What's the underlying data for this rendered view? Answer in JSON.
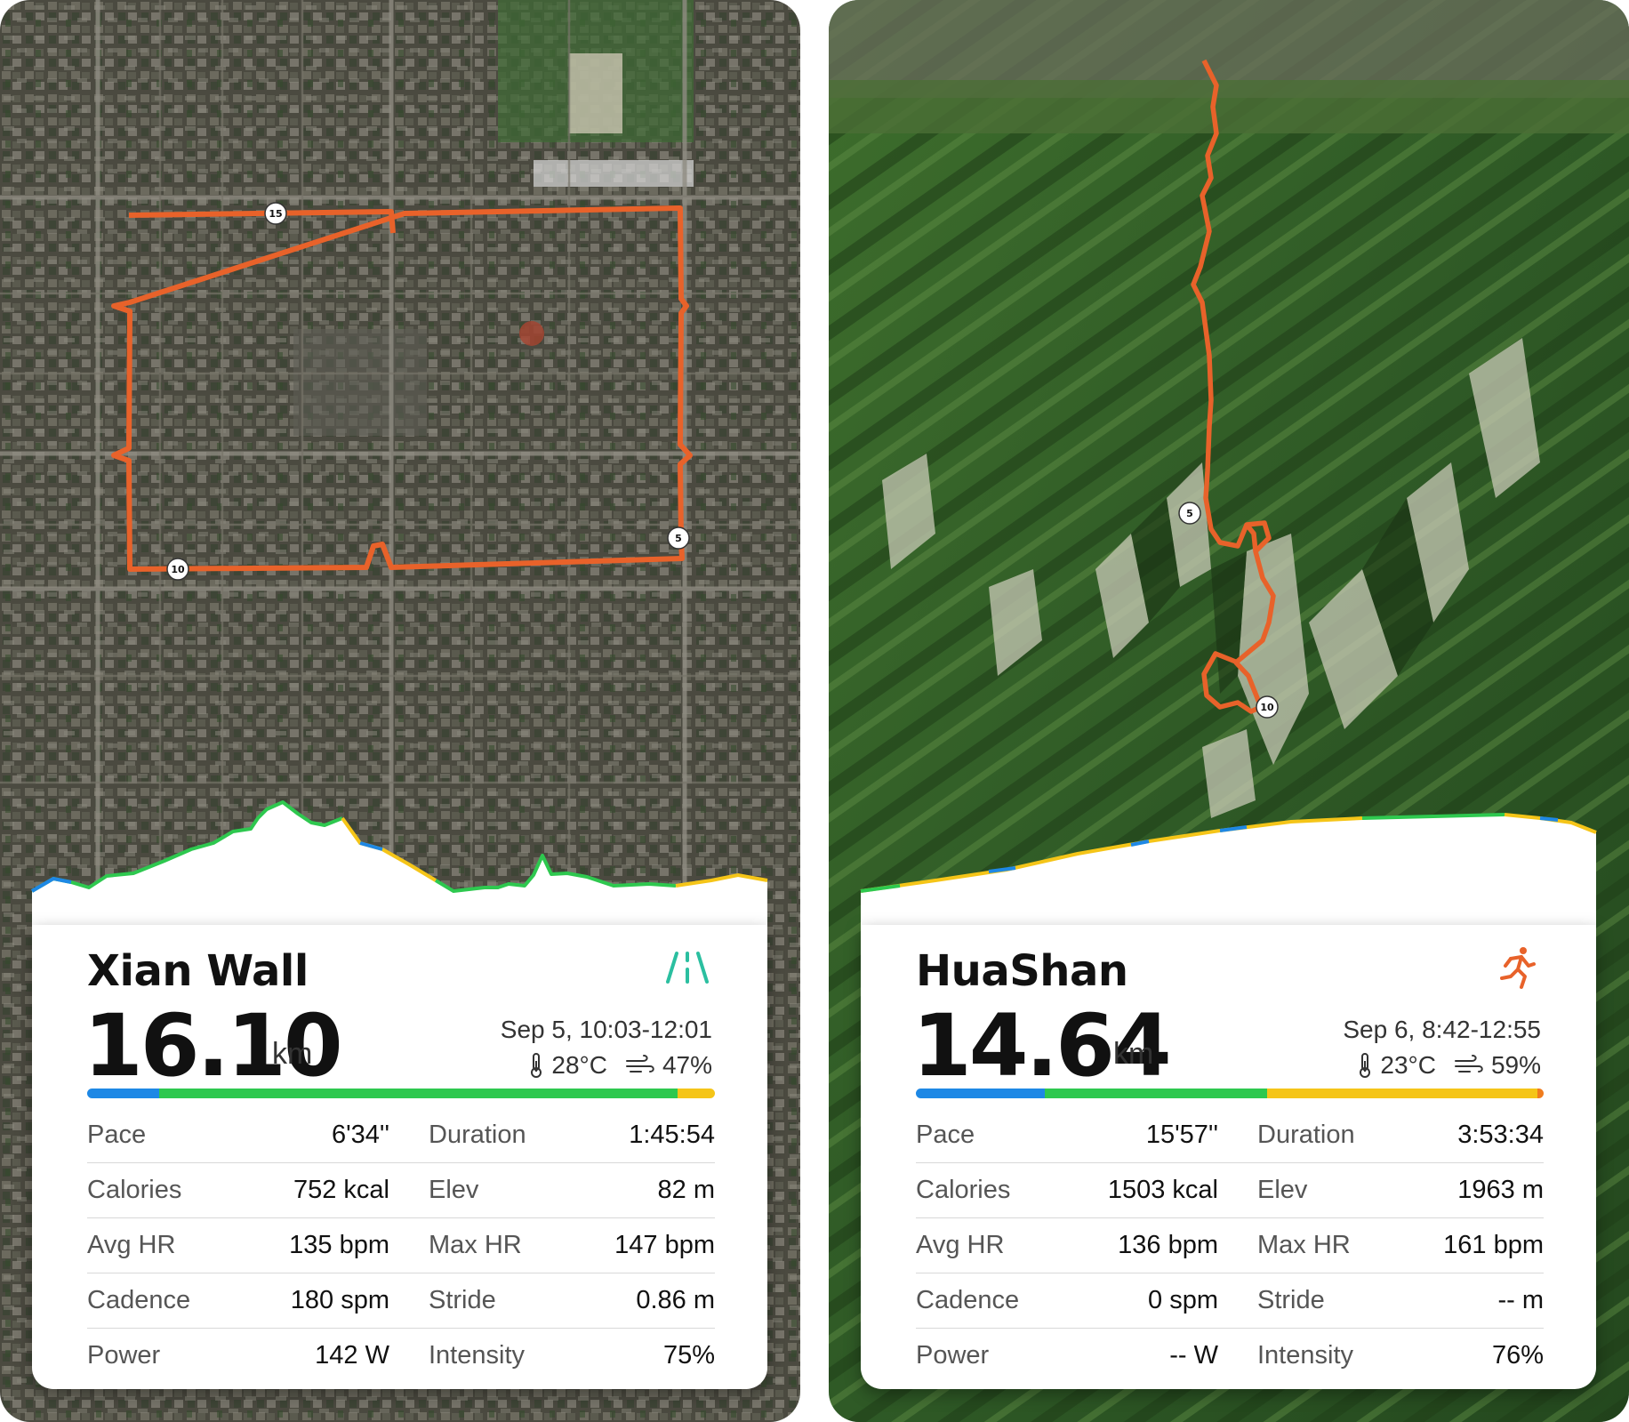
{
  "activities": [
    {
      "title": "Xian Wall",
      "sport_icon": "workout-brand-icon",
      "distance": "16.10",
      "distance_unit": "km",
      "datetime": "Sep 5, 10:03-12:01",
      "temperature": "28°C",
      "humidity": "47%",
      "zone_bar": [
        {
          "color": "#1e88e5",
          "fraction": 0.115
        },
        {
          "color": "#2ec84f",
          "fraction": 0.825
        },
        {
          "color": "#f5c518",
          "fraction": 0.06
        }
      ],
      "route_markers": [
        "15",
        "5",
        "10"
      ],
      "stats": [
        {
          "label1": "Pace",
          "value1": "6'34''",
          "label2": "Duration",
          "value2": "1:45:54"
        },
        {
          "label1": "Calories",
          "value1": "752 kcal",
          "label2": "Elev",
          "value2": "82 m"
        },
        {
          "label1": "Avg HR",
          "value1": "135 bpm",
          "label2": "Max HR",
          "value2": "147 bpm"
        },
        {
          "label1": "Cadence",
          "value1": "180 spm",
          "label2": "Stride",
          "value2": "0.86 m"
        },
        {
          "label1": "Power",
          "value1": "142 W",
          "label2": "Intensity",
          "value2": "75%"
        }
      ]
    },
    {
      "title": "HuaShan",
      "sport_icon": "running-person-icon",
      "distance": "14.64",
      "distance_unit": "km",
      "datetime": "Sep 6, 8:42-12:55",
      "temperature": "23°C",
      "humidity": "59%",
      "zone_bar": [
        {
          "color": "#1e88e5",
          "fraction": 0.205
        },
        {
          "color": "#2ec84f",
          "fraction": 0.355
        },
        {
          "color": "#f5c518",
          "fraction": 0.43
        },
        {
          "color": "#f07c1e",
          "fraction": 0.01
        }
      ],
      "route_markers": [
        "5",
        "10"
      ],
      "stats": [
        {
          "label1": "Pace",
          "value1": "15'57''",
          "label2": "Duration",
          "value2": "3:53:34"
        },
        {
          "label1": "Calories",
          "value1": "1503 kcal",
          "label2": "Elev",
          "value2": "1963 m"
        },
        {
          "label1": "Avg HR",
          "value1": "136 bpm",
          "label2": "Max HR",
          "value2": "161 bpm"
        },
        {
          "label1": "Cadence",
          "value1": "0 spm",
          "label2": "Stride",
          "value2": "-- m"
        },
        {
          "label1": "Power",
          "value1": "-- W",
          "label2": "Intensity",
          "value2": "76%"
        }
      ]
    }
  ],
  "colors": {
    "route": "#e8622a",
    "city_base": "#4a4a3e",
    "mountain_base": "#2f5a26"
  }
}
